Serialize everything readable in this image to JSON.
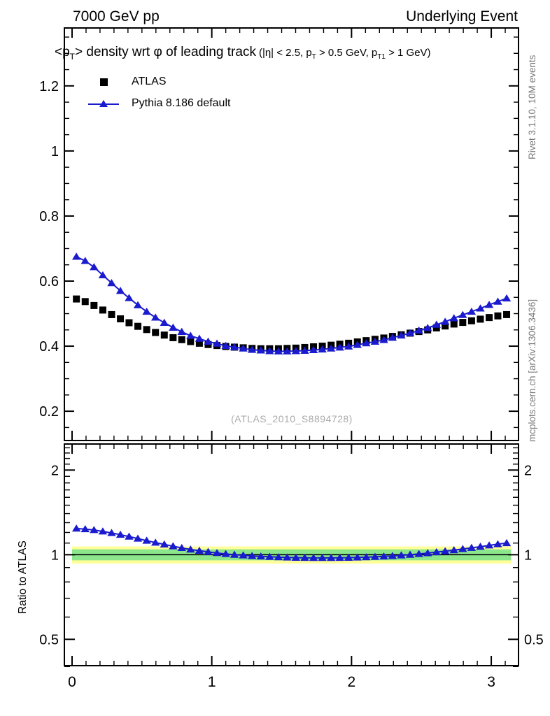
{
  "header": {
    "left": "7000 GeV pp",
    "right": "Underlying Event"
  },
  "captions": {
    "rivet": "Rivet 3.1.10,  10M events",
    "mcplots": "mcplots.cern.ch [arXiv:1306.3436]"
  },
  "watermark": "(ATLAS_2010_S8894728)",
  "title": {
    "main_segments": [
      {
        "t": "<p"
      },
      {
        "t": "T",
        "sub": true
      },
      {
        "t": "> density wrt "
      },
      {
        "t": "φ"
      },
      {
        "t": " of leading track"
      }
    ],
    "cond_segments": [
      {
        "t": "(|η| < 2.5, p"
      },
      {
        "t": "T",
        "sub": true
      },
      {
        "t": " > 0.5 GeV, p"
      },
      {
        "t": "T1",
        "sub": true
      },
      {
        "t": " > 1 GeV)"
      }
    ]
  },
  "legend": {
    "items": [
      {
        "label": "ATLAS",
        "marker": "square",
        "color": "#000000"
      },
      {
        "label": "Pythia 8.186 default",
        "marker": "triangle-line",
        "color": "#1a1ace"
      }
    ]
  },
  "colors": {
    "mc_blue": "#1a1ace",
    "data_black": "#000000",
    "band_yellow": "#ffff99",
    "band_green": "#8ce68c",
    "watermark_gray": "#aaaaaa",
    "caption_gray": "#7a7a7a"
  },
  "chart_data": {
    "type": "scatter",
    "title": "<pT> density wrt phi of leading track (|eta| < 2.5, pT > 0.5 GeV, pT1 > 1 GeV)",
    "legend_position": "top-left-inside",
    "grid": false,
    "x": [
      0.031,
      0.094,
      0.157,
      0.22,
      0.283,
      0.346,
      0.408,
      0.471,
      0.534,
      0.597,
      0.66,
      0.723,
      0.785,
      0.848,
      0.911,
      0.974,
      1.037,
      1.1,
      1.162,
      1.225,
      1.288,
      1.351,
      1.414,
      1.477,
      1.539,
      1.602,
      1.665,
      1.728,
      1.791,
      1.854,
      1.916,
      1.979,
      2.042,
      2.105,
      2.168,
      2.231,
      2.293,
      2.356,
      2.419,
      2.482,
      2.545,
      2.608,
      2.67,
      2.733,
      2.796,
      2.859,
      2.922,
      2.985,
      3.047,
      3.11
    ],
    "series": [
      {
        "name": "ATLAS",
        "marker": "square",
        "color": "#000000",
        "line": false,
        "values": [
          0.545,
          0.537,
          0.525,
          0.511,
          0.497,
          0.484,
          0.472,
          0.461,
          0.451,
          0.442,
          0.434,
          0.426,
          0.42,
          0.414,
          0.409,
          0.405,
          0.402,
          0.399,
          0.397,
          0.395,
          0.393,
          0.392,
          0.392,
          0.392,
          0.393,
          0.394,
          0.396,
          0.398,
          0.4,
          0.403,
          0.406,
          0.409,
          0.413,
          0.417,
          0.421,
          0.425,
          0.43,
          0.435,
          0.44,
          0.445,
          0.45,
          0.456,
          0.462,
          0.468,
          0.473,
          0.478,
          0.483,
          0.488,
          0.493,
          0.497
        ]
      },
      {
        "name": "Pythia 8.186 default",
        "marker": "triangle",
        "color": "#1a1ace",
        "line": true,
        "values": [
          0.675,
          0.662,
          0.643,
          0.618,
          0.594,
          0.57,
          0.548,
          0.526,
          0.506,
          0.488,
          0.472,
          0.457,
          0.444,
          0.432,
          0.423,
          0.414,
          0.408,
          0.401,
          0.397,
          0.393,
          0.389,
          0.387,
          0.385,
          0.384,
          0.384,
          0.385,
          0.386,
          0.388,
          0.39,
          0.393,
          0.396,
          0.399,
          0.404,
          0.409,
          0.414,
          0.419,
          0.426,
          0.433,
          0.44,
          0.448,
          0.456,
          0.466,
          0.475,
          0.486,
          0.496,
          0.506,
          0.516,
          0.527,
          0.537,
          0.547
        ]
      }
    ],
    "main_axis": {
      "xlim": [
        -0.055,
        3.195
      ],
      "ylim": [
        0.11,
        1.378
      ],
      "xticks": [
        0,
        1,
        2,
        3
      ],
      "xtick_labels": [
        "0",
        "1",
        "2",
        "3"
      ],
      "yticks": [
        0.2,
        0.4,
        0.6,
        0.8,
        1.0,
        1.2
      ],
      "ytick_labels": [
        "0.2",
        "0.4",
        "0.6",
        "0.8",
        "1",
        "1.2"
      ],
      "x_minor_step": 0.1,
      "y_minor_step": 0.05
    },
    "ratio": {
      "label": "Ratio to ATLAS",
      "definition": "Pythia 8.186 default / ATLAS",
      "yscale": "log",
      "ylim": [
        0.403,
        2.476
      ],
      "yticks": [
        2,
        1,
        0.5
      ],
      "ytick_labels": [
        "2",
        "1",
        "0.5"
      ],
      "y_minor_ticks": [
        0.4,
        0.6,
        0.7,
        0.8,
        0.9,
        1.1,
        1.2,
        1.3,
        1.4,
        1.5,
        1.6,
        1.7,
        1.8,
        1.9,
        2.1,
        2.2,
        2.3,
        2.4
      ],
      "unity_line": 1.0,
      "band_yellow": [
        0.93,
        1.07
      ],
      "band_green": [
        0.955,
        1.045
      ],
      "band_xrange": [
        0,
        3.1416
      ],
      "values": [
        1.239,
        1.233,
        1.224,
        1.21,
        1.195,
        1.178,
        1.16,
        1.141,
        1.122,
        1.104,
        1.088,
        1.072,
        1.057,
        1.044,
        1.033,
        1.023,
        1.014,
        1.006,
        1.0,
        0.995,
        0.99,
        0.986,
        0.983,
        0.98,
        0.978,
        0.976,
        0.975,
        0.974,
        0.974,
        0.974,
        0.975,
        0.976,
        0.978,
        0.98,
        0.983,
        0.986,
        0.99,
        0.995,
        1.0,
        1.006,
        1.013,
        1.021,
        1.029,
        1.038,
        1.048,
        1.058,
        1.068,
        1.079,
        1.09,
        1.1
      ]
    }
  }
}
